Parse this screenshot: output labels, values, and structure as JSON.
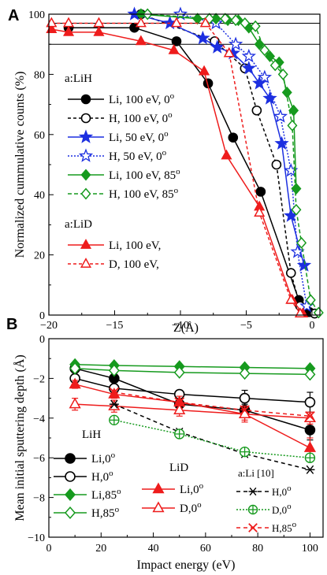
{
  "chart_data": [
    {
      "panel": "A",
      "type": "line",
      "xlabel": "Z(Å)",
      "ylabel": "Normalized cummulative counts (%)",
      "xlim": [
        -20,
        0.6
      ],
      "ylim": [
        0,
        100
      ],
      "xticks": [
        -20,
        -15,
        -10,
        -5,
        0
      ],
      "yticks": [
        0,
        20,
        40,
        60,
        80,
        100
      ],
      "hlines": [
        90,
        97
      ],
      "grid": false,
      "legend_groups": [
        {
          "title": "a:LiH",
          "entries": [
            0,
            1,
            2,
            3,
            4,
            5
          ]
        },
        {
          "title": "a:LiD",
          "entries": [
            6,
            7
          ]
        }
      ],
      "series": [
        {
          "name": "Li, 100 eV, 0",
          "sup": "o",
          "color": "#000000",
          "marker": "circle",
          "filled": true,
          "dash": "solid",
          "x": [
            -18.5,
            -13.5,
            -10.3,
            -7.9,
            -6.0,
            -3.9,
            -1.0,
            -0.2
          ],
          "y": [
            95.5,
            95.5,
            91,
            77,
            59,
            41,
            5,
            1
          ]
        },
        {
          "name": "H, 100 eV, 0",
          "sup": "o",
          "color": "#000000",
          "marker": "circle",
          "filled": false,
          "dash": "4,3",
          "x": [
            -13.0,
            -7.4,
            -5.1,
            -4.2,
            -2.7,
            -1.6,
            -0.9,
            0.2
          ],
          "y": [
            100,
            91,
            82,
            68,
            50,
            14,
            3,
            0.5
          ]
        },
        {
          "name": "Li, 50 eV, 0",
          "sup": "o",
          "color": "#1c2fe0",
          "marker": "star",
          "filled": true,
          "dash": "solid",
          "x": [
            -13.5,
            -10.8,
            -8.3,
            -7.2,
            -6.0,
            -4.8,
            -4.0,
            -3.2,
            -2.3,
            -1.6,
            -0.6
          ],
          "y": [
            100,
            97,
            92,
            89,
            87,
            82,
            77,
            72,
            57,
            33,
            16.5
          ]
        },
        {
          "name": "H, 50 eV, 0",
          "sup": "o",
          "color": "#1c2fe0",
          "marker": "star",
          "filled": false,
          "dash": "2,2",
          "x": [
            -10.0,
            -7.3,
            -5.8,
            -4.8,
            -3.6,
            -2.4,
            -1.6,
            -1.1,
            -0.4
          ],
          "y": [
            100,
            97,
            90,
            86,
            79,
            66,
            48,
            21,
            3
          ]
        },
        {
          "name": "Li, 100 eV, 85",
          "sup": "o",
          "color": "#169a1e",
          "marker": "diamond",
          "filled": true,
          "dash": "solid",
          "x": [
            -13.0,
            -8.7,
            -7.3,
            -6.4,
            -5.6,
            -4.8,
            -4.0,
            -3.2,
            -2.5,
            -1.9,
            -1.4,
            -1.2
          ],
          "y": [
            100,
            98.5,
            98.5,
            98,
            98,
            95.5,
            90,
            86,
            84,
            74,
            68,
            42
          ]
        },
        {
          "name": "H, 100 eV, 85",
          "sup": "o",
          "color": "#169a1e",
          "marker": "diamond",
          "filled": false,
          "dash": "5,3",
          "x": [
            -12.5,
            -7.8,
            -6.6,
            -5.8,
            -5.1,
            -4.3,
            -3.6,
            -2.8,
            -2.2,
            -1.5,
            -1.2,
            -0.8,
            -0.1,
            0.5
          ],
          "y": [
            100,
            98.5,
            98.5,
            98,
            97,
            96,
            88,
            83,
            80,
            63,
            35,
            24,
            5,
            0.8
          ]
        },
        {
          "name": "Li, 100 eV,",
          "sup": "",
          "color": "#ee1c1c",
          "marker": "triangle",
          "filled": true,
          "dash": "solid",
          "x": [
            -19.8,
            -18.5,
            -16.2,
            -13.0,
            -10.5,
            -8.2,
            -6.5,
            -4.0,
            -1.5,
            -0.7
          ],
          "y": [
            95,
            94,
            94,
            91,
            88,
            81,
            53,
            36,
            5,
            0.5
          ]
        },
        {
          "name": "D, 100 eV,",
          "sup": "",
          "color": "#ee1c1c",
          "marker": "triangle",
          "filled": false,
          "dash": "4,3",
          "x": [
            -19.8,
            -18.5,
            -16.2,
            -13.0,
            -10.3,
            -8.1,
            -6.3,
            -4.0,
            -1.6,
            -0.9
          ],
          "y": [
            97,
            97,
            97,
            97,
            97,
            97,
            87,
            34,
            5,
            0.5
          ]
        }
      ]
    },
    {
      "panel": "B",
      "type": "line",
      "xlabel": "Impact energy (eV)",
      "ylabel": "Mean initial sputtering depth (Å)",
      "xlim": [
        0,
        105
      ],
      "ylim": [
        -10,
        0
      ],
      "xticks": [
        0,
        20,
        40,
        60,
        80,
        100
      ],
      "yticks": [
        -10,
        -8,
        -6,
        -4,
        -2,
        0
      ],
      "grid": false,
      "legend_groups": [
        {
          "title": "LiH",
          "entries": [
            0,
            1,
            2,
            3
          ]
        },
        {
          "title": "LiD",
          "entries": [
            4,
            5
          ]
        },
        {
          "title": "a:Li [10]",
          "entries": [
            6,
            7,
            8
          ]
        }
      ],
      "series": [
        {
          "name": "Li,0",
          "sup": "o",
          "color": "#000000",
          "marker": "circle",
          "filled": true,
          "dash": "solid",
          "x": [
            10,
            25,
            50,
            75,
            100
          ],
          "y": [
            -1.5,
            -2.0,
            -3.3,
            -3.6,
            -4.6
          ],
          "err": [
            0.2,
            0.2,
            0.2,
            0.3,
            0.5
          ]
        },
        {
          "name": "H,0",
          "sup": "o",
          "color": "#000000",
          "marker": "circle",
          "filled": false,
          "dash": "solid",
          "x": [
            10,
            25,
            50,
            75,
            100
          ],
          "y": [
            -2.0,
            -2.5,
            -2.8,
            -3.0,
            -3.2
          ],
          "err": [
            0.2,
            0.2,
            0.2,
            0.4,
            0.5
          ]
        },
        {
          "name": "Li,85",
          "sup": "o",
          "color": "#169a1e",
          "marker": "diamond",
          "filled": true,
          "dash": "solid",
          "x": [
            10,
            25,
            50,
            75,
            100
          ],
          "y": [
            -1.3,
            -1.35,
            -1.4,
            -1.45,
            -1.5
          ],
          "err": [
            0.1,
            0.1,
            0.1,
            0.1,
            0.1
          ]
        },
        {
          "name": "H,85",
          "sup": "o",
          "color": "#169a1e",
          "marker": "diamond",
          "filled": false,
          "dash": "solid",
          "x": [
            10,
            25,
            50,
            75,
            100
          ],
          "y": [
            -1.5,
            -1.6,
            -1.7,
            -1.75,
            -1.8
          ],
          "err": [
            0.1,
            0.1,
            0.1,
            0.1,
            0.1
          ]
        },
        {
          "name": "Li,0",
          "sup": "o",
          "color": "#ee1c1c",
          "marker": "triangle",
          "filled": true,
          "dash": "solid",
          "x": [
            10,
            25,
            50,
            75,
            100
          ],
          "y": [
            -2.3,
            -2.8,
            -3.2,
            -3.8,
            -5.5
          ],
          "err": [
            0.2,
            0.2,
            0.3,
            0.4,
            0.5
          ]
        },
        {
          "name": "D,0",
          "sup": "o",
          "color": "#ee1c1c",
          "marker": "triangle",
          "filled": false,
          "dash": "solid",
          "x": [
            10,
            25,
            50,
            75,
            100
          ],
          "y": [
            -3.3,
            -3.4,
            -3.6,
            -3.8,
            -4.0
          ],
          "err": [
            0.3,
            0.3,
            0.3,
            0.3,
            0.3
          ]
        },
        {
          "name": "H,0",
          "sup": "o",
          "color": "#000000",
          "marker": "asterisk",
          "filled": false,
          "dash": "5,4",
          "x": [
            25,
            50,
            75,
            100
          ],
          "y": [
            -3.3,
            -4.7,
            -5.8,
            -6.6
          ]
        },
        {
          "name": "D,0",
          "sup": "o",
          "color": "#169a1e",
          "marker": "circleplus",
          "filled": false,
          "dash": "2,2",
          "x": [
            25,
            50,
            75,
            100
          ],
          "y": [
            -4.1,
            -4.8,
            -5.7,
            -6.0
          ]
        },
        {
          "name": "H,85",
          "sup": "o",
          "color": "#ee1c1c",
          "marker": "cross",
          "filled": false,
          "dash": "5,4",
          "x": [
            25,
            50,
            75,
            100
          ],
          "y": [
            -2.7,
            -3.2,
            -3.6,
            -3.9
          ]
        }
      ]
    }
  ]
}
